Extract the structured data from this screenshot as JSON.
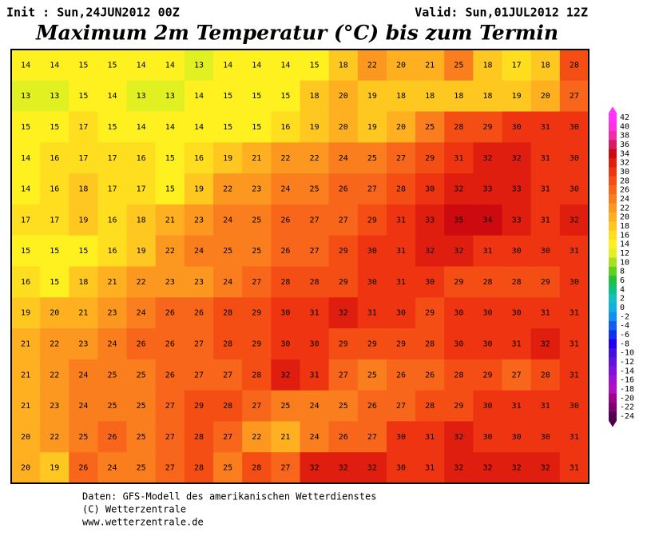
{
  "header": {
    "init": "Init : Sun,24JUN2012 00Z",
    "valid": "Valid: Sun,01JUL2012 12Z",
    "title": "Maximum 2m Temperatur (°C) bis zum Termin"
  },
  "grid": [
    [
      14,
      14,
      15,
      15,
      14,
      14,
      13,
      14,
      14,
      14,
      15,
      18,
      22,
      20,
      21,
      25,
      18,
      17,
      18,
      28
    ],
    [
      13,
      13,
      15,
      14,
      13,
      13,
      14,
      15,
      15,
      15,
      18,
      20,
      19,
      18,
      18,
      18,
      18,
      19,
      20,
      27
    ],
    [
      15,
      15,
      17,
      15,
      14,
      14,
      14,
      15,
      15,
      16,
      19,
      20,
      19,
      20,
      25,
      28,
      29,
      30,
      31,
      30
    ],
    [
      14,
      16,
      17,
      17,
      16,
      15,
      16,
      19,
      21,
      22,
      22,
      24,
      25,
      27,
      29,
      31,
      32,
      32,
      31,
      30
    ],
    [
      14,
      16,
      18,
      17,
      17,
      15,
      19,
      22,
      23,
      24,
      25,
      26,
      27,
      28,
      30,
      32,
      33,
      33,
      31,
      30
    ],
    [
      17,
      17,
      19,
      16,
      18,
      21,
      23,
      24,
      25,
      26,
      27,
      27,
      29,
      31,
      33,
      35,
      34,
      33,
      31,
      32
    ],
    [
      15,
      15,
      15,
      16,
      19,
      22,
      24,
      25,
      25,
      26,
      27,
      29,
      30,
      31,
      32,
      32,
      31,
      30,
      30,
      31
    ],
    [
      16,
      15,
      18,
      21,
      22,
      23,
      23,
      24,
      27,
      28,
      28,
      29,
      30,
      31,
      30,
      29,
      28,
      28,
      29,
      30
    ],
    [
      19,
      20,
      21,
      23,
      24,
      26,
      26,
      28,
      29,
      30,
      31,
      32,
      31,
      30,
      29,
      30,
      30,
      30,
      31,
      31
    ],
    [
      21,
      22,
      23,
      24,
      26,
      26,
      27,
      28,
      29,
      30,
      30,
      29,
      29,
      29,
      28,
      30,
      30,
      31,
      32,
      31
    ],
    [
      21,
      22,
      24,
      25,
      25,
      26,
      27,
      27,
      28,
      32,
      31,
      27,
      25,
      26,
      26,
      28,
      29,
      27,
      28,
      31
    ],
    [
      21,
      23,
      24,
      25,
      25,
      27,
      29,
      28,
      27,
      25,
      24,
      25,
      26,
      27,
      28,
      29,
      30,
      31,
      31,
      30
    ],
    [
      20,
      22,
      25,
      26,
      25,
      27,
      28,
      27,
      22,
      21,
      24,
      26,
      27,
      30,
      31,
      32,
      30,
      30,
      30,
      31
    ],
    [
      20,
      19,
      26,
      24,
      25,
      27,
      28,
      25,
      28,
      27,
      32,
      32,
      32,
      30,
      31,
      32,
      32,
      32,
      32,
      31
    ]
  ],
  "colorbar": [
    {
      "value": 42,
      "color": "#ff33ff"
    },
    {
      "value": 40,
      "color": "#ff33dd"
    },
    {
      "value": 38,
      "color": "#f02aa8"
    },
    {
      "value": 36,
      "color": "#d81a60"
    },
    {
      "value": 34,
      "color": "#cc0a10"
    },
    {
      "value": 32,
      "color": "#e01e10"
    },
    {
      "value": 30,
      "color": "#ee3410"
    },
    {
      "value": 28,
      "color": "#f44e14"
    },
    {
      "value": 26,
      "color": "#f7661a"
    },
    {
      "value": 24,
      "color": "#fa7e1e"
    },
    {
      "value": 22,
      "color": "#fc9820"
    },
    {
      "value": 20,
      "color": "#ffb020"
    },
    {
      "value": 18,
      "color": "#ffc820"
    },
    {
      "value": 16,
      "color": "#ffde20"
    },
    {
      "value": 14,
      "color": "#fff020"
    },
    {
      "value": 12,
      "color": "#e0f020"
    },
    {
      "value": 10,
      "color": "#a8e020"
    },
    {
      "value": 8,
      "color": "#60d020"
    },
    {
      "value": 6,
      "color": "#20c040"
    },
    {
      "value": 4,
      "color": "#10c080"
    },
    {
      "value": 2,
      "color": "#10c0c0"
    },
    {
      "value": 0,
      "color": "#10b0e0"
    },
    {
      "value": -2,
      "color": "#1090f0"
    },
    {
      "value": -4,
      "color": "#1060f0"
    },
    {
      "value": -6,
      "color": "#1030f0"
    },
    {
      "value": -8,
      "color": "#2000f0"
    },
    {
      "value": -10,
      "color": "#4010e0"
    },
    {
      "value": -12,
      "color": "#6010e0"
    },
    {
      "value": -14,
      "color": "#8010e0"
    },
    {
      "value": -16,
      "color": "#a010d0"
    },
    {
      "value": -18,
      "color": "#b010c0"
    },
    {
      "value": -20,
      "color": "#a00090"
    },
    {
      "value": -22,
      "color": "#800070"
    },
    {
      "value": -24,
      "color": "#500050"
    }
  ],
  "footer": [
    "Daten: GFS-Modell des amerikanischen Wetterdienstes",
    "(C) Wetterzentrale",
    "www.wetterzentrale.de"
  ]
}
